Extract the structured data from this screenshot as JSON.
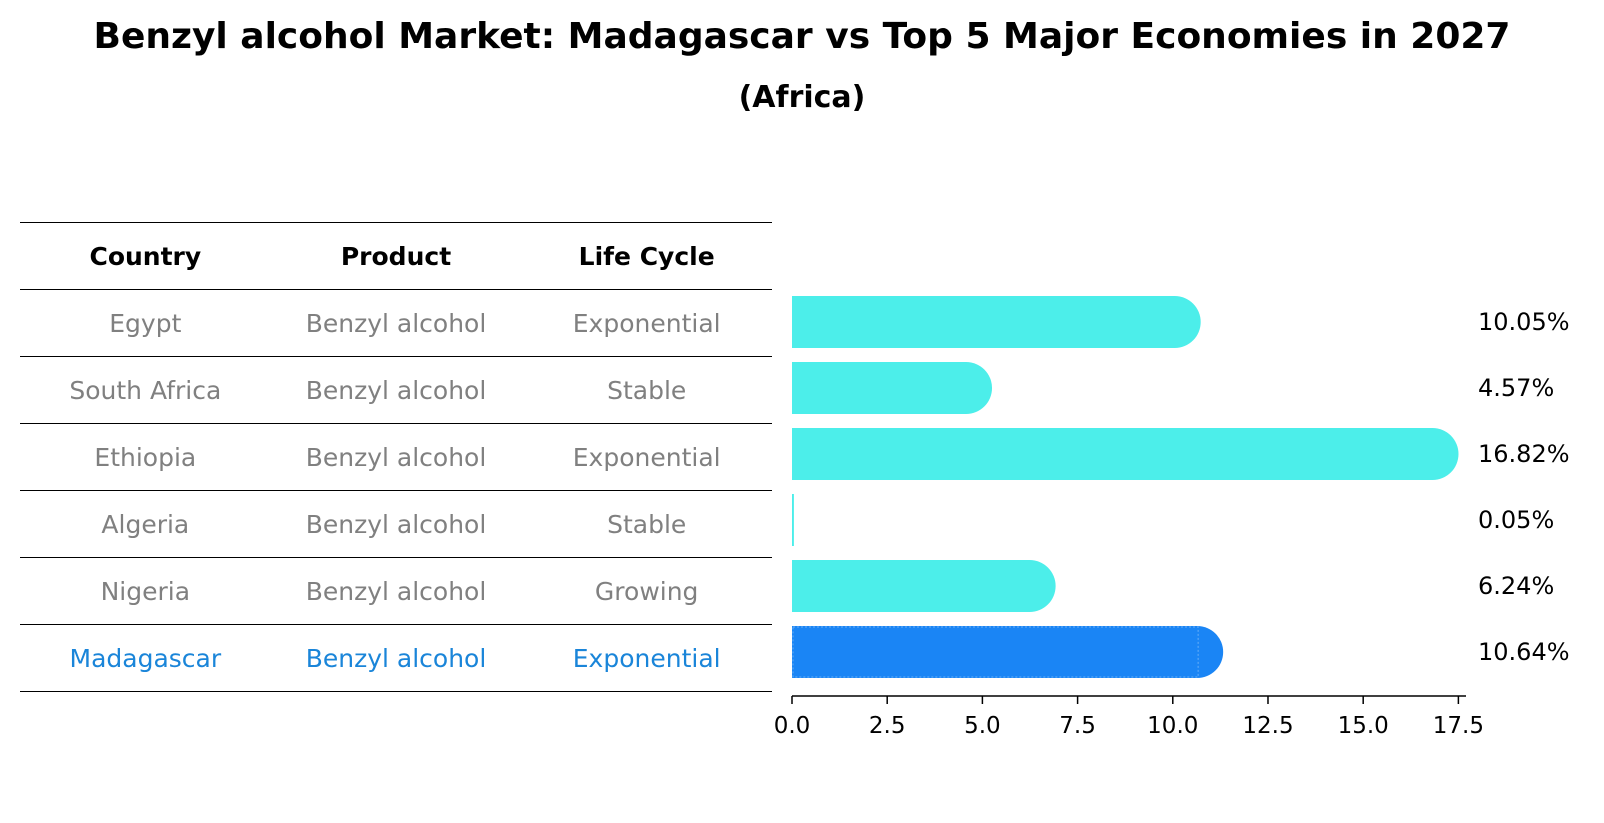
{
  "chart_data": {
    "type": "bar",
    "orientation": "horizontal",
    "title": "Benzyl alcohol Market: Madagascar vs Top 5 Major Economies in 2027",
    "subtitle": "(Africa)",
    "table": {
      "columns": [
        "Country",
        "Product",
        "Life Cycle"
      ],
      "rows": [
        [
          "Egypt",
          "Benzyl alcohol",
          "Exponential"
        ],
        [
          "South Africa",
          "Benzyl alcohol",
          "Stable"
        ],
        [
          "Ethiopia",
          "Benzyl alcohol",
          "Exponential"
        ],
        [
          "Algeria",
          "Benzyl alcohol",
          "Stable"
        ],
        [
          "Nigeria",
          "Benzyl alcohol",
          "Growing"
        ],
        [
          "Madagascar",
          "Benzyl alcohol",
          "Exponential"
        ]
      ]
    },
    "categories": [
      "Egypt",
      "South Africa",
      "Ethiopia",
      "Algeria",
      "Nigeria",
      "Madagascar"
    ],
    "values": [
      10.05,
      4.57,
      16.82,
      0.05,
      6.24,
      10.64
    ],
    "value_labels": [
      "10.05%",
      "4.57%",
      "16.82%",
      "0.05%",
      "6.24%",
      "10.64%"
    ],
    "highlight_index": 5,
    "xlim": [
      0,
      17.7
    ],
    "xticks": [
      0.0,
      2.5,
      5.0,
      7.5,
      10.0,
      12.5,
      15.0,
      17.5
    ],
    "xtick_labels": [
      "0.0",
      "2.5",
      "5.0",
      "7.5",
      "10.0",
      "12.5",
      "15.0",
      "17.5"
    ],
    "colors": {
      "bar": "#4ceeea",
      "highlight": "#1a85f5",
      "highlight_text": "#1a85d9",
      "muted_text": "#808080"
    }
  }
}
